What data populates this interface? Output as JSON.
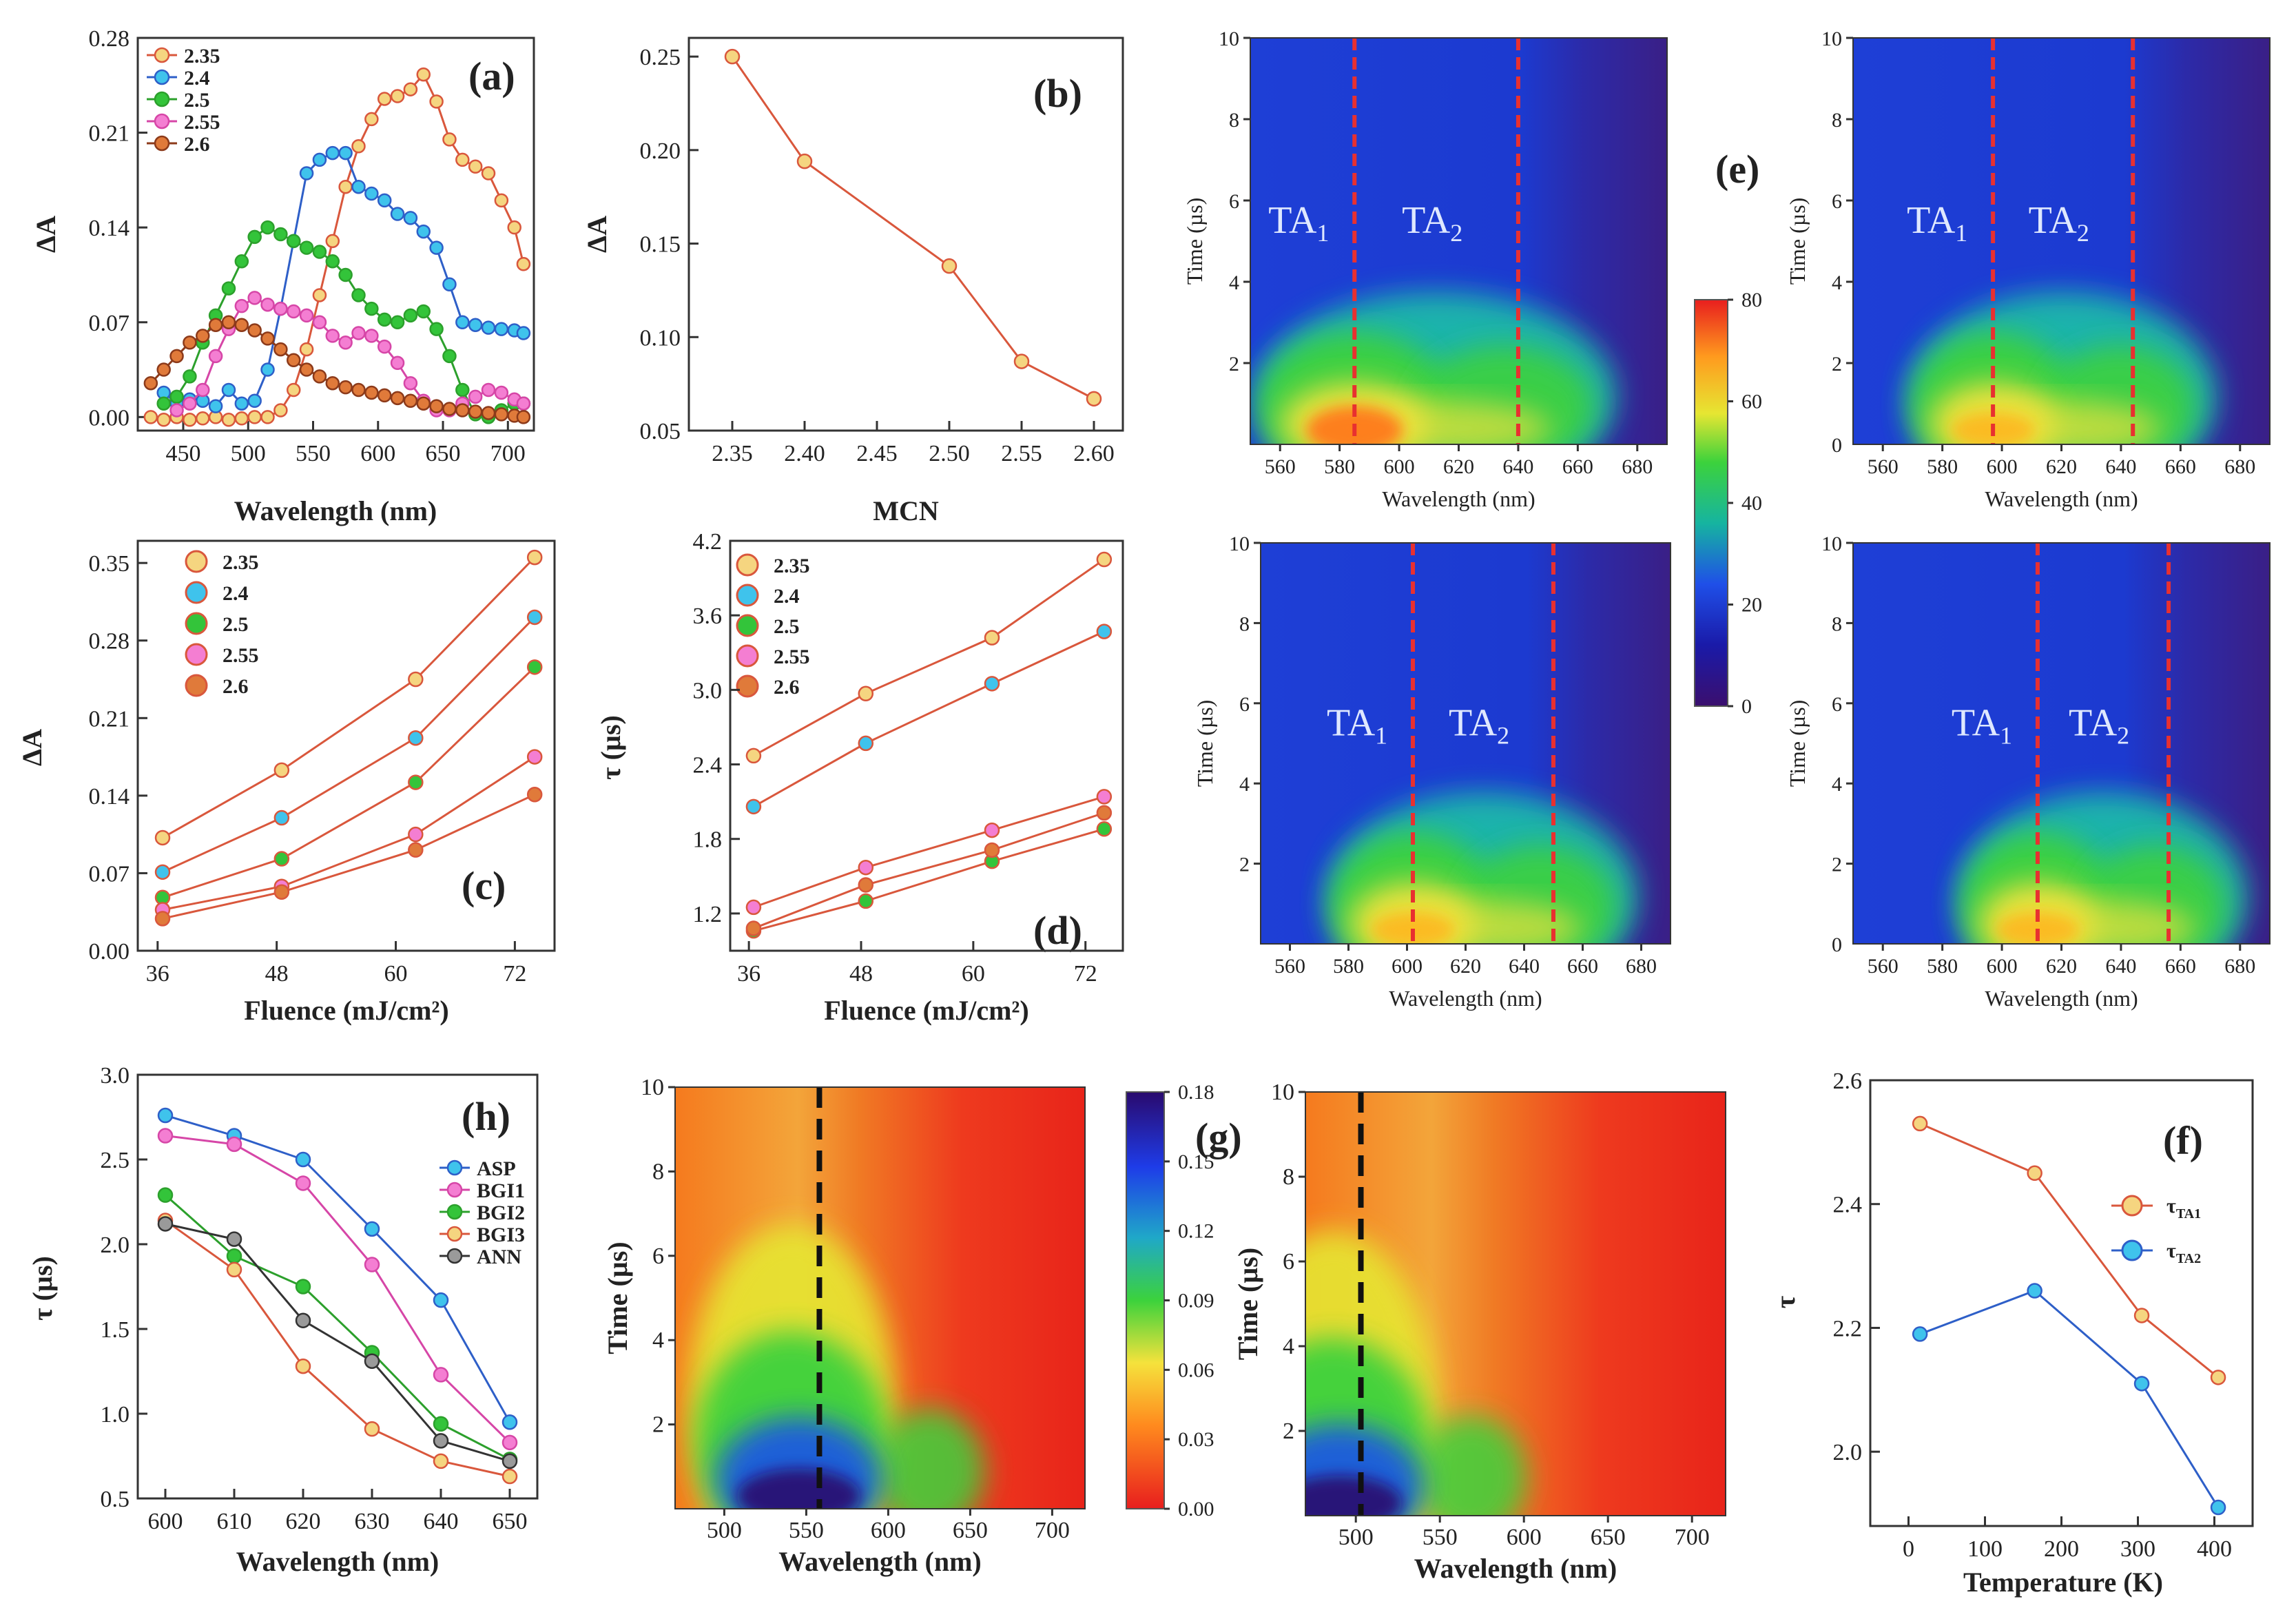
{
  "chart_data": [
    {
      "id": "a",
      "type": "line",
      "panel_label": "(a)",
      "xlabel": "Wavelength (nm)",
      "ylabel": "ΔA",
      "xlim": [
        415,
        720
      ],
      "ylim": [
        -0.01,
        0.28
      ],
      "xticks": [
        450,
        500,
        550,
        600,
        650,
        700
      ],
      "yticks": [
        0.0,
        0.07,
        0.14,
        0.21,
        0.28
      ],
      "ytick_labels": [
        "0.00",
        "0.07",
        "0.14",
        "0.21",
        "0.28"
      ],
      "series": [
        {
          "name": "2.35",
          "color": "#d9573c",
          "face": "#f5d580",
          "x": [
            425,
            435,
            445,
            455,
            465,
            475,
            485,
            495,
            505,
            515,
            525,
            535,
            545,
            555,
            565,
            575,
            585,
            595,
            605,
            615,
            625,
            635,
            645,
            655,
            665,
            675,
            685,
            695,
            705,
            712
          ],
          "y": [
            0.0,
            -0.002,
            0.0,
            -0.002,
            -0.001,
            0.0,
            -0.002,
            -0.001,
            0.0,
            0.0,
            0.005,
            0.02,
            0.05,
            0.09,
            0.13,
            0.17,
            0.2,
            0.22,
            0.235,
            0.237,
            0.242,
            0.253,
            0.233,
            0.205,
            0.19,
            0.185,
            0.18,
            0.16,
            0.14,
            0.113
          ]
        },
        {
          "name": "2.4",
          "color": "#2e5fc8",
          "face": "#3fc3ec",
          "x": [
            435,
            445,
            455,
            465,
            475,
            485,
            495,
            505,
            515,
            525,
            535,
            545,
            555,
            565,
            575,
            585,
            595,
            605,
            615,
            625,
            635,
            645,
            655,
            665,
            675,
            685,
            695,
            705,
            712
          ],
          "y": [
            0.018,
            0.01,
            0.013,
            0.012,
            0.008,
            0.02,
            0.01,
            0.012,
            0.035,
            0.08,
            0.13,
            0.18,
            0.19,
            0.195,
            0.195,
            0.17,
            0.165,
            0.16,
            0.15,
            0.147,
            0.137,
            0.125,
            0.098,
            0.07,
            0.068,
            0.066,
            0.065,
            0.064,
            0.062
          ]
        },
        {
          "name": "2.5",
          "color": "#2ca02c",
          "face": "#33c43a",
          "x": [
            435,
            445,
            455,
            465,
            475,
            485,
            495,
            505,
            515,
            525,
            535,
            545,
            555,
            565,
            575,
            585,
            595,
            605,
            615,
            625,
            635,
            645,
            655,
            665,
            675,
            685,
            695,
            705,
            712
          ],
          "y": [
            0.01,
            0.015,
            0.03,
            0.055,
            0.075,
            0.095,
            0.115,
            0.133,
            0.14,
            0.135,
            0.13,
            0.125,
            0.122,
            0.115,
            0.105,
            0.09,
            0.08,
            0.072,
            0.07,
            0.075,
            0.078,
            0.065,
            0.045,
            0.02,
            0.002,
            0.0,
            0.005,
            0.01,
            0.01
          ]
        },
        {
          "name": "2.55",
          "color": "#d646a7",
          "face": "#f47ed2",
          "x": [
            445,
            455,
            465,
            475,
            485,
            495,
            505,
            515,
            525,
            535,
            545,
            555,
            565,
            575,
            585,
            595,
            605,
            615,
            625,
            635,
            645,
            655,
            665,
            675,
            685,
            695,
            705,
            712
          ],
          "y": [
            0.005,
            0.01,
            0.02,
            0.045,
            0.065,
            0.082,
            0.088,
            0.083,
            0.08,
            0.078,
            0.075,
            0.07,
            0.06,
            0.055,
            0.062,
            0.06,
            0.052,
            0.04,
            0.025,
            0.012,
            0.005,
            0.005,
            0.01,
            0.015,
            0.02,
            0.018,
            0.013,
            0.01
          ]
        },
        {
          "name": "2.6",
          "color": "#8c3a1a",
          "face": "#e07a3a",
          "x": [
            425,
            435,
            445,
            455,
            465,
            475,
            485,
            495,
            505,
            515,
            525,
            535,
            545,
            555,
            565,
            575,
            585,
            595,
            605,
            615,
            625,
            635,
            645,
            655,
            665,
            675,
            685,
            695,
            705,
            712
          ],
          "y": [
            0.025,
            0.035,
            0.045,
            0.055,
            0.06,
            0.068,
            0.07,
            0.068,
            0.064,
            0.058,
            0.05,
            0.042,
            0.035,
            0.03,
            0.025,
            0.022,
            0.02,
            0.018,
            0.016,
            0.014,
            0.012,
            0.01,
            0.008,
            0.006,
            0.005,
            0.004,
            0.003,
            0.002,
            0.001,
            0.0
          ]
        }
      ]
    },
    {
      "id": "b",
      "type": "line",
      "panel_label": "(b)",
      "xlabel": "MCN",
      "ylabel": "ΔA",
      "xlim": [
        2.32,
        2.62
      ],
      "ylim": [
        0.05,
        0.26
      ],
      "xticks": [
        2.35,
        2.4,
        2.45,
        2.5,
        2.55,
        2.6
      ],
      "xtick_labels": [
        "2.35",
        "2.40",
        "2.45",
        "2.50",
        "2.55",
        "2.60"
      ],
      "yticks": [
        0.05,
        0.1,
        0.15,
        0.2,
        0.25
      ],
      "ytick_labels": [
        "0.05",
        "0.10",
        "0.15",
        "0.20",
        "0.25"
      ],
      "series": [
        {
          "name": "ΔA",
          "color": "#d9573c",
          "face": "#f5d580",
          "x": [
            2.35,
            2.4,
            2.5,
            2.55,
            2.6
          ],
          "y": [
            0.25,
            0.194,
            0.138,
            0.087,
            0.067
          ]
        }
      ]
    },
    {
      "id": "c",
      "type": "line",
      "panel_label": "(c)",
      "xlabel": "Fluence (mJ/cm²)",
      "ylabel": "ΔA",
      "xlim": [
        34,
        76
      ],
      "ylim": [
        0,
        0.37
      ],
      "xticks": [
        36,
        48,
        60,
        72
      ],
      "yticks": [
        0.0,
        0.07,
        0.14,
        0.21,
        0.28,
        0.35
      ],
      "ytick_labels": [
        "0.00",
        "0.07",
        "0.14",
        "0.21",
        "0.28",
        "0.35"
      ],
      "series": [
        {
          "name": "2.35",
          "color": "#d9573c",
          "face": "#f5d580",
          "x": [
            36.5,
            48.5,
            62,
            74
          ],
          "y": [
            0.102,
            0.163,
            0.245,
            0.355
          ]
        },
        {
          "name": "2.4",
          "color": "#d9573c",
          "face": "#3fc3ec",
          "x": [
            36.5,
            48.5,
            62,
            74
          ],
          "y": [
            0.071,
            0.12,
            0.192,
            0.301
          ]
        },
        {
          "name": "2.5",
          "color": "#d9573c",
          "face": "#33c43a",
          "x": [
            36.5,
            48.5,
            62,
            74
          ],
          "y": [
            0.048,
            0.083,
            0.152,
            0.256
          ]
        },
        {
          "name": "2.55",
          "color": "#d9573c",
          "face": "#f47ed2",
          "x": [
            36.5,
            48.5,
            62,
            74
          ],
          "y": [
            0.037,
            0.058,
            0.105,
            0.175
          ]
        },
        {
          "name": "2.6",
          "color": "#d9573c",
          "face": "#e07a3a",
          "x": [
            36.5,
            48.5,
            62,
            74
          ],
          "y": [
            0.029,
            0.053,
            0.091,
            0.141
          ]
        }
      ]
    },
    {
      "id": "d",
      "type": "line",
      "panel_label": "(d)",
      "xlabel": "Fluence (mJ/cm²)",
      "ylabel": "τ (µs)",
      "xlim": [
        34,
        76
      ],
      "ylim": [
        0.9,
        4.2
      ],
      "xticks": [
        36,
        48,
        60,
        72
      ],
      "yticks": [
        1.2,
        1.8,
        2.4,
        3.0,
        3.6,
        4.2
      ],
      "ytick_labels": [
        "1.2",
        "1.8",
        "2.4",
        "3.0",
        "3.6",
        "4.2"
      ],
      "series": [
        {
          "name": "2.35",
          "color": "#d9573c",
          "face": "#f5d580",
          "x": [
            36.5,
            48.5,
            62,
            74
          ],
          "y": [
            2.47,
            2.97,
            3.42,
            4.05
          ]
        },
        {
          "name": "2.4",
          "color": "#d9573c",
          "face": "#3fc3ec",
          "x": [
            36.5,
            48.5,
            62,
            74
          ],
          "y": [
            2.06,
            2.57,
            3.05,
            3.47
          ]
        },
        {
          "name": "2.5",
          "color": "#d9573c",
          "face": "#33c43a",
          "x": [
            36.5,
            48.5,
            62,
            74
          ],
          "y": [
            1.06,
            1.3,
            1.62,
            1.88
          ]
        },
        {
          "name": "2.55",
          "color": "#d9573c",
          "face": "#f47ed2",
          "x": [
            36.5,
            48.5,
            62,
            74
          ],
          "y": [
            1.25,
            1.57,
            1.87,
            2.14
          ]
        },
        {
          "name": "2.6",
          "color": "#d9573c",
          "face": "#e07a3a",
          "x": [
            36.5,
            48.5,
            62,
            74
          ],
          "y": [
            1.08,
            1.43,
            1.71,
            2.01
          ]
        }
      ]
    },
    {
      "id": "e",
      "type": "heatmap",
      "panel_label": "(e)",
      "xlabel": "Wavelength (nm)",
      "ylabel": "Time (µs)",
      "xlim": [
        550,
        690
      ],
      "ylim": [
        0,
        10
      ],
      "xticks": [
        560,
        580,
        600,
        620,
        640,
        660,
        680
      ],
      "yticks": [
        2,
        4,
        6,
        8,
        10
      ],
      "colorbar": {
        "min": 0,
        "max": 80,
        "ticks": [
          0,
          20,
          40,
          60,
          80
        ]
      },
      "subplots": [
        {
          "ta1_label": "TA",
          "ta2_label": "TA",
          "sub": "1",
          "sub2": "2",
          "ta1_nm": 585,
          "ta2_nm": 640
        },
        {
          "ta1_label": "TA",
          "ta2_label": "TA",
          "sub": "1",
          "sub2": "2",
          "ta1_nm": 597,
          "ta2_nm": 644
        },
        {
          "ta1_label": "TA",
          "ta2_label": "TA",
          "sub": "1",
          "sub2": "2",
          "ta1_nm": 602,
          "ta2_nm": 650
        },
        {
          "ta1_label": "TA",
          "ta2_label": "TA",
          "sub": "1",
          "sub2": "2",
          "ta1_nm": 612,
          "ta2_nm": 656
        }
      ]
    },
    {
      "id": "h",
      "type": "line",
      "panel_label": "(h)",
      "xlabel": "Wavelength (nm)",
      "ylabel": "τ (µs)",
      "xlim": [
        596,
        654
      ],
      "ylim": [
        0.5,
        3.0
      ],
      "xticks": [
        600,
        610,
        620,
        630,
        640,
        650
      ],
      "yticks": [
        0.5,
        1.0,
        1.5,
        2.0,
        2.5,
        3.0
      ],
      "ytick_labels": [
        "0.5",
        "1.0",
        "1.5",
        "2.0",
        "2.5",
        "3.0"
      ],
      "series": [
        {
          "name": "ASP",
          "color": "#2e5fc8",
          "face": "#3fc3ec",
          "x": [
            600,
            610,
            620,
            630,
            640,
            650
          ],
          "y": [
            2.76,
            2.64,
            2.5,
            2.09,
            1.67,
            0.95
          ]
        },
        {
          "name": "BGI1",
          "color": "#d646a7",
          "face": "#f47ed2",
          "x": [
            600,
            610,
            620,
            630,
            640,
            650
          ],
          "y": [
            2.64,
            2.59,
            2.36,
            1.88,
            1.23,
            0.83
          ]
        },
        {
          "name": "BGI2",
          "color": "#2ca02c",
          "face": "#33c43a",
          "x": [
            600,
            610,
            620,
            630,
            640,
            650
          ],
          "y": [
            2.29,
            1.93,
            1.75,
            1.36,
            0.94,
            0.73
          ]
        },
        {
          "name": "BGI3",
          "color": "#d9573c",
          "face": "#f5d580",
          "x": [
            600,
            610,
            620,
            630,
            640,
            650
          ],
          "y": [
            2.14,
            1.85,
            1.28,
            0.91,
            0.72,
            0.63
          ]
        },
        {
          "name": "ANN",
          "color": "#333333",
          "face": "#9a9a9a",
          "x": [
            600,
            610,
            620,
            630,
            640,
            650
          ],
          "y": [
            2.12,
            2.03,
            1.55,
            1.31,
            0.84,
            0.72
          ]
        }
      ]
    },
    {
      "id": "g",
      "type": "heatmap",
      "panel_label": "(g)",
      "xlabel": "Wavelength (nm)",
      "ylabel": "Time (µs)",
      "xlim": [
        470,
        720
      ],
      "ylim": [
        0,
        10
      ],
      "xticks": [
        500,
        550,
        600,
        650,
        700
      ],
      "yticks": [
        2,
        4,
        6,
        8,
        10
      ],
      "colorbar": {
        "min": 0,
        "max": 0.18,
        "ticks": [
          0.0,
          0.03,
          0.06,
          0.09,
          0.12,
          0.15,
          0.18
        ],
        "tick_labels": [
          "0.00",
          "0.03",
          "0.06",
          "0.09",
          "0.12",
          "0.15",
          "0.18"
        ]
      },
      "subplots": [
        {
          "dash_nm": 558
        },
        {
          "dash_nm": 503
        }
      ]
    },
    {
      "id": "f",
      "type": "line",
      "panel_label": "(f)",
      "xlabel": "Temperature (K)",
      "ylabel": "τ",
      "xlim": [
        -50,
        450
      ],
      "ylim": [
        1.88,
        2.6
      ],
      "xticks": [
        0,
        100,
        200,
        300,
        400
      ],
      "yticks": [
        2.0,
        2.2,
        2.4,
        2.6
      ],
      "ytick_labels": [
        "2.0",
        "2.2",
        "2.4",
        "2.6"
      ],
      "legend": [
        {
          "name": "τ",
          "sub": "TA1"
        },
        {
          "name": "τ",
          "sub": "TA2"
        }
      ],
      "series": [
        {
          "name": "τTA1",
          "color": "#d9573c",
          "face": "#f5d580",
          "x": [
            15,
            165,
            305,
            405
          ],
          "y": [
            2.53,
            2.45,
            2.22,
            2.12
          ]
        },
        {
          "name": "τTA2",
          "color": "#2e5fc8",
          "face": "#3fc3ec",
          "x": [
            15,
            165,
            305,
            405
          ],
          "y": [
            2.19,
            2.26,
            2.11,
            1.91
          ]
        }
      ]
    }
  ]
}
